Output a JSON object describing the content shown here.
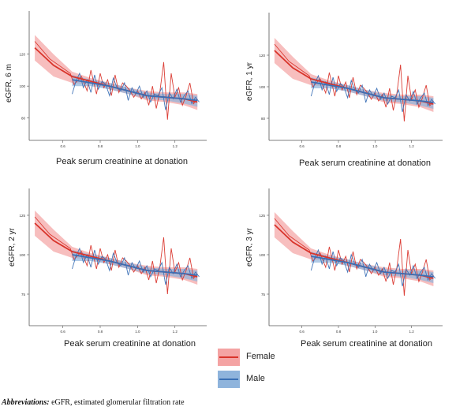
{
  "chart_data": [
    {
      "type": "line",
      "ylabel": "eGFR, 6 m",
      "xlabel": "Peak serum creatinine at donation",
      "xlim": [
        0.42,
        1.37
      ],
      "ylim": [
        66,
        147
      ],
      "xticks": [
        0.6,
        0.8,
        1.0,
        1.2
      ],
      "xtick_labels": [
        "0.6",
        "0.8",
        "1.0",
        "1.2"
      ],
      "yticks": [
        80,
        100,
        120
      ],
      "ytick_labels": [
        "80",
        "100",
        "120"
      ],
      "female_offset": 0,
      "male_offset": 0
    },
    {
      "type": "line",
      "ylabel": "eGFR, 1 yr",
      "xlabel": "Peak serum creatinine at donation",
      "xlim": [
        0.42,
        1.37
      ],
      "ylim": [
        66,
        147
      ],
      "xticks": [
        0.6,
        0.8,
        1.0,
        1.2
      ],
      "xtick_labels": [
        "0.6",
        "0.8",
        "1.0",
        "1.2"
      ],
      "yticks": [
        80,
        100,
        120
      ],
      "ytick_labels": [
        "80",
        "100",
        "120"
      ],
      "female_offset": -1,
      "male_offset": -1
    },
    {
      "type": "line",
      "ylabel": "eGFR, 2 yr",
      "xlabel": "Peak serum creatinine at donation",
      "xlim": [
        0.42,
        1.37
      ],
      "ylim": [
        55,
        142
      ],
      "xticks": [
        0.6,
        0.8,
        1.0,
        1.2
      ],
      "xtick_labels": [
        "0.6",
        "0.8",
        "1.0",
        "1.2"
      ],
      "yticks": [
        75,
        100,
        125
      ],
      "ytick_labels": [
        "75",
        "100",
        "125"
      ],
      "female_offset": -4,
      "male_offset": -4
    },
    {
      "type": "line",
      "ylabel": "eGFR, 3 yr",
      "xlabel": "Peak serum creatinine at donation",
      "xlim": [
        0.42,
        1.37
      ],
      "ylim": [
        55,
        142
      ],
      "xticks": [
        0.6,
        0.8,
        1.0,
        1.2
      ],
      "xtick_labels": [
        "0.6",
        "0.8",
        "1.0",
        "1.2"
      ],
      "yticks": [
        75,
        100,
        125
      ],
      "ytick_labels": [
        "75",
        "100",
        "125"
      ],
      "female_offset": -5,
      "male_offset": -5
    }
  ],
  "series_template": {
    "female": {
      "name": "Female",
      "color": "#d9342b",
      "band_color": "#f4a3a3",
      "smooth_x": [
        0.45,
        0.55,
        0.65,
        0.75,
        0.85,
        0.95,
        1.05,
        1.15,
        1.25,
        1.32
      ],
      "smooth_y": [
        124,
        113,
        106,
        103,
        100,
        97,
        94,
        93,
        92,
        90
      ],
      "band_upper": [
        132,
        120,
        109,
        105,
        102,
        99,
        97,
        96,
        96,
        95
      ],
      "band_lower": [
        116,
        106,
        102,
        101,
        98,
        95,
        91,
        90,
        88,
        85
      ],
      "raw_x": [
        0.45,
        0.53,
        0.64,
        0.66,
        0.7,
        0.73,
        0.75,
        0.78,
        0.8,
        0.82,
        0.84,
        0.86,
        0.88,
        0.9,
        0.92,
        0.94,
        0.96,
        0.98,
        1.0,
        1.02,
        1.04,
        1.06,
        1.08,
        1.1,
        1.12,
        1.14,
        1.16,
        1.18,
        1.2,
        1.22,
        1.24,
        1.26,
        1.28,
        1.3,
        1.32
      ],
      "raw_y": [
        128,
        117,
        108,
        101,
        106,
        97,
        110,
        95,
        108,
        99,
        104,
        94,
        107,
        96,
        102,
        100,
        97,
        93,
        97,
        92,
        96,
        88,
        100,
        86,
        97,
        115,
        79,
        108,
        93,
        99,
        88,
        94,
        102,
        89,
        92
      ]
    },
    "male": {
      "name": "Male",
      "color": "#3a6fb5",
      "band_color": "#8fb4dc",
      "smooth_x": [
        0.65,
        0.75,
        0.85,
        0.95,
        1.05,
        1.15,
        1.25,
        1.32
      ],
      "smooth_y": [
        104,
        102,
        100,
        97,
        94,
        93,
        92,
        91
      ],
      "band_upper": [
        107,
        104,
        102,
        99,
        96,
        95,
        95,
        94
      ],
      "band_lower": [
        100,
        100,
        98,
        95,
        92,
        91,
        89,
        87
      ],
      "raw_x": [
        0.65,
        0.67,
        0.69,
        0.71,
        0.73,
        0.75,
        0.77,
        0.79,
        0.81,
        0.83,
        0.85,
        0.87,
        0.89,
        0.91,
        0.93,
        0.95,
        0.97,
        0.99,
        1.01,
        1.03,
        1.05,
        1.07,
        1.09,
        1.11,
        1.13,
        1.15,
        1.17,
        1.19,
        1.21,
        1.23,
        1.25,
        1.27,
        1.29,
        1.31,
        1.33
      ],
      "raw_y": [
        95,
        103,
        108,
        99,
        104,
        96,
        107,
        98,
        103,
        101,
        94,
        105,
        99,
        97,
        102,
        91,
        99,
        95,
        100,
        93,
        97,
        90,
        95,
        94,
        99,
        85,
        96,
        92,
        98,
        90,
        94,
        97,
        89,
        93,
        90
      ]
    }
  },
  "legend": {
    "female_label": "Female",
    "male_label": "Male"
  },
  "footnote": {
    "label": "Abbreviations:",
    "text": " eGFR, estimated glomerular filtration rate"
  }
}
